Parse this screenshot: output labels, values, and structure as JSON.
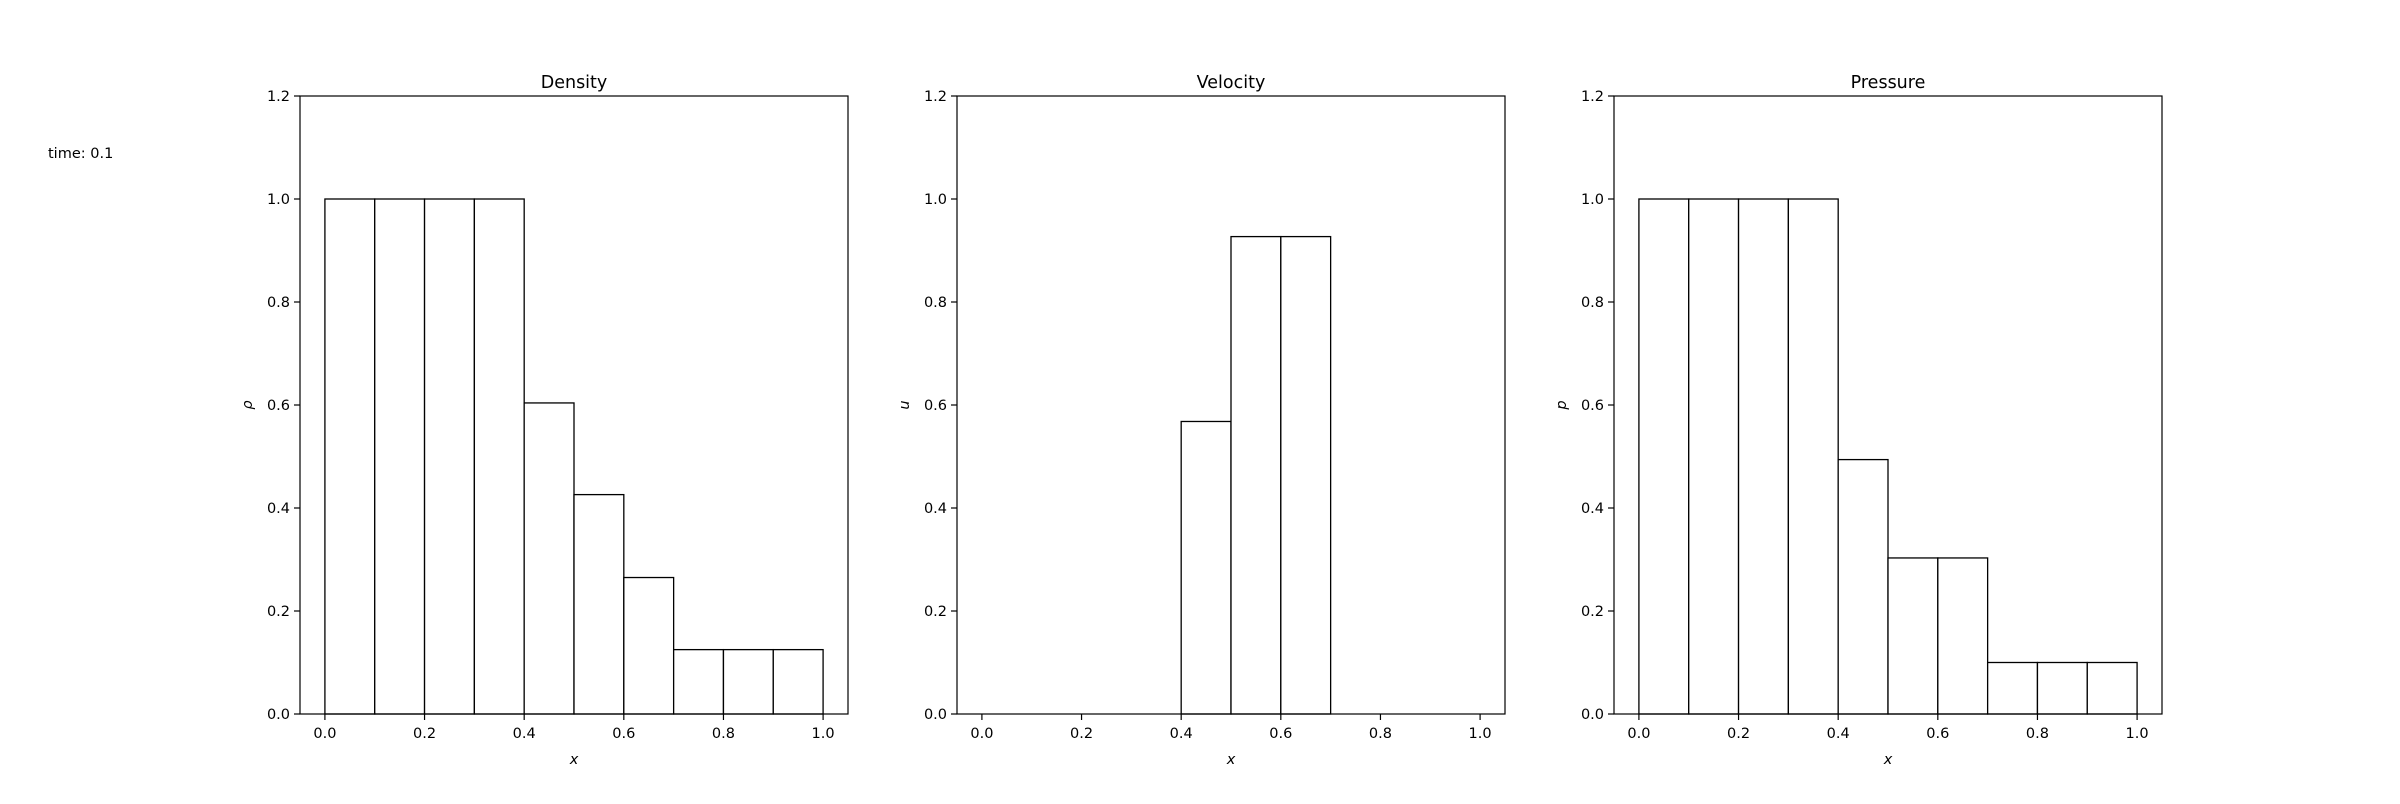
{
  "time_label": "time: 0.1",
  "chart_data": [
    {
      "type": "bar",
      "title": "Density",
      "xlabel": "x",
      "ylabel": "ρ",
      "xlim": [
        -0.05,
        1.05
      ],
      "ylim": [
        0,
        1.2
      ],
      "xticks": [
        "0.0",
        "0.2",
        "0.4",
        "0.6",
        "0.8",
        "1.0"
      ],
      "yticks": [
        "0.0",
        "0.2",
        "0.4",
        "0.6",
        "0.8",
        "1.0",
        "1.2"
      ],
      "bin_edges": [
        0.0,
        0.1,
        0.2,
        0.3,
        0.4,
        0.5,
        0.6,
        0.7,
        0.8,
        0.9,
        1.0
      ],
      "values": [
        1.0,
        1.0,
        1.0,
        1.0,
        0.604,
        0.426,
        0.265,
        0.125,
        0.125,
        0.125
      ]
    },
    {
      "type": "bar",
      "title": "Velocity",
      "xlabel": "x",
      "ylabel": "u",
      "xlim": [
        -0.05,
        1.05
      ],
      "ylim": [
        0,
        1.2
      ],
      "xticks": [
        "0.0",
        "0.2",
        "0.4",
        "0.6",
        "0.8",
        "1.0"
      ],
      "yticks": [
        "0.0",
        "0.2",
        "0.4",
        "0.6",
        "0.8",
        "1.0",
        "1.2"
      ],
      "bin_edges": [
        0.0,
        0.1,
        0.2,
        0.3,
        0.4,
        0.5,
        0.6,
        0.7,
        0.8,
        0.9,
        1.0
      ],
      "values": [
        0.0,
        0.0,
        0.0,
        0.0,
        0.568,
        0.927,
        0.927,
        0.0,
        0.0,
        0.0
      ]
    },
    {
      "type": "bar",
      "title": "Pressure",
      "xlabel": "x",
      "ylabel": "p",
      "xlim": [
        -0.05,
        1.05
      ],
      "ylim": [
        0,
        1.2
      ],
      "xticks": [
        "0.0",
        "0.2",
        "0.4",
        "0.6",
        "0.8",
        "1.0"
      ],
      "yticks": [
        "0.0",
        "0.2",
        "0.4",
        "0.6",
        "0.8",
        "1.0",
        "1.2"
      ],
      "bin_edges": [
        0.0,
        0.1,
        0.2,
        0.3,
        0.4,
        0.5,
        0.6,
        0.7,
        0.8,
        0.9,
        1.0
      ],
      "values": [
        1.0,
        1.0,
        1.0,
        1.0,
        0.494,
        0.303,
        0.303,
        0.1,
        0.1,
        0.1
      ]
    }
  ]
}
